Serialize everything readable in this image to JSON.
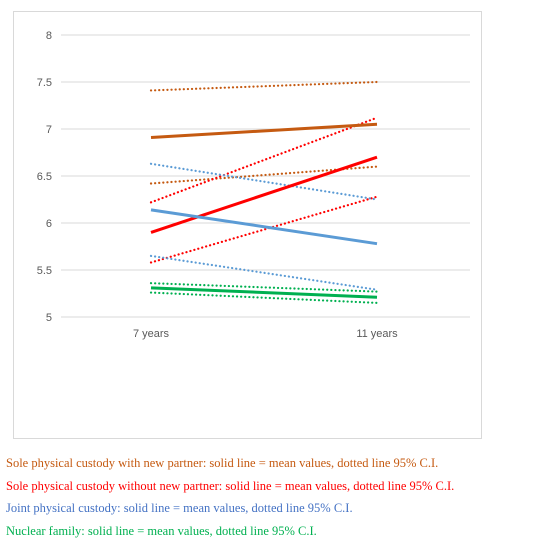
{
  "chart_data": {
    "type": "line",
    "title": "",
    "xlabel": "",
    "ylabel": "",
    "categories": [
      "7 years",
      "11 years"
    ],
    "ylim": [
      5,
      8
    ],
    "yticks": [
      "5",
      "5.5",
      "6",
      "6.5",
      "7",
      "7.5",
      "8"
    ],
    "grid": true,
    "legend_placement": "below",
    "series": [
      {
        "group": "new_partner",
        "kind": "mean",
        "color": "#c55a11",
        "values": [
          6.91,
          7.05
        ]
      },
      {
        "group": "new_partner",
        "kind": "ci_upper",
        "color": "#c55a11",
        "values": [
          7.41,
          7.5
        ]
      },
      {
        "group": "new_partner",
        "kind": "ci_lower",
        "color": "#c55a11",
        "values": [
          6.42,
          6.6
        ]
      },
      {
        "group": "no_partner",
        "kind": "mean",
        "color": "#ff0000",
        "values": [
          5.9,
          6.7
        ]
      },
      {
        "group": "no_partner",
        "kind": "ci_upper",
        "color": "#ff0000",
        "values": [
          6.22,
          7.12
        ]
      },
      {
        "group": "no_partner",
        "kind": "ci_lower",
        "color": "#ff0000",
        "values": [
          5.58,
          6.28
        ]
      },
      {
        "group": "joint",
        "kind": "mean",
        "color": "#5b9bd5",
        "values": [
          6.14,
          5.78
        ]
      },
      {
        "group": "joint",
        "kind": "ci_upper",
        "color": "#5b9bd5",
        "values": [
          6.63,
          6.25
        ]
      },
      {
        "group": "joint",
        "kind": "ci_lower",
        "color": "#5b9bd5",
        "values": [
          5.65,
          5.29
        ]
      },
      {
        "group": "nuclear",
        "kind": "mean",
        "color": "#00b050",
        "values": [
          5.31,
          5.21
        ]
      },
      {
        "group": "nuclear",
        "kind": "ci_upper",
        "color": "#00b050",
        "values": [
          5.36,
          5.27
        ]
      },
      {
        "group": "nuclear",
        "kind": "ci_lower",
        "color": "#00b050",
        "values": [
          5.26,
          5.15
        ]
      }
    ]
  },
  "legend": [
    {
      "color": "#c55a11",
      "text": "Sole physical custody with new partner: solid line = mean values, dotted line 95% C.I."
    },
    {
      "color": "#ff0000",
      "text": "Sole physical custody without new partner: solid line = mean values, dotted line 95% C.I."
    },
    {
      "color": "#4472c4",
      "text": "Joint physical custody: solid line = mean values, dotted line 95% C.I."
    },
    {
      "color": "#00b050",
      "text": "Nuclear family: solid line = mean values, dotted line 95% C.I."
    }
  ]
}
